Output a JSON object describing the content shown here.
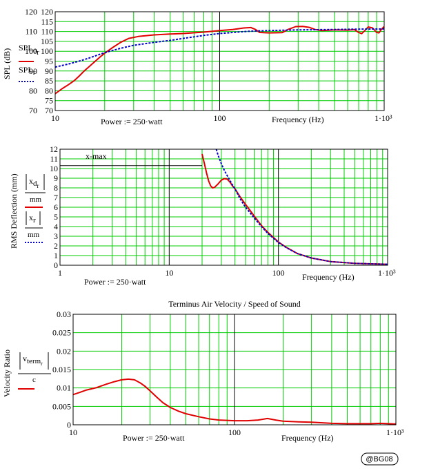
{
  "chart_data": [
    {
      "type": "line",
      "title": "",
      "xlabel": "Frequency (Hz)",
      "ylabel": "SPL (dB)",
      "xscale": "log",
      "xlim": [
        10,
        1000
      ],
      "ylim": [
        70,
        120
      ],
      "x_tick_labels": [
        "10",
        "100",
        "1·10³"
      ],
      "y_ticks_left": [
        "70",
        "75",
        "80",
        "85",
        "90",
        "95",
        "100",
        "105",
        "110",
        "115",
        "120"
      ],
      "y_ticks_outer": [
        "70",
        "80",
        "90",
        "100",
        "110",
        "120"
      ],
      "annotation": "Power := 250·watt",
      "grid": true,
      "legend_placement": "left",
      "series": [
        {
          "name": "SPL_o_r",
          "color": "#e00000",
          "style": "solid",
          "points": [
            [
              10,
              78.5
            ],
            [
              11,
              81
            ],
            [
              12,
              83
            ],
            [
              13,
              85
            ],
            [
              14,
              87.5
            ],
            [
              15,
              90
            ],
            [
              17,
              94
            ],
            [
              19,
              97.5
            ],
            [
              20,
              99
            ],
            [
              22,
              101.5
            ],
            [
              25,
              104.5
            ],
            [
              28,
              106.5
            ],
            [
              32,
              107.5
            ],
            [
              40,
              108.3
            ],
            [
              50,
              108.7
            ],
            [
              60,
              109
            ],
            [
              80,
              109.7
            ],
            [
              100,
              110.5
            ],
            [
              120,
              111
            ],
            [
              140,
              111.8
            ],
            [
              155,
              112
            ],
            [
              165,
              111
            ],
            [
              175,
              109.5
            ],
            [
              200,
              109.3
            ],
            [
              240,
              109.4
            ],
            [
              260,
              111
            ],
            [
              290,
              112.5
            ],
            [
              320,
              112.6
            ],
            [
              350,
              112.1
            ],
            [
              380,
              111
            ],
            [
              420,
              110.5
            ],
            [
              500,
              110.8
            ],
            [
              600,
              110.7
            ],
            [
              660,
              110.9
            ],
            [
              700,
              109.5
            ],
            [
              730,
              108.9
            ],
            [
              760,
              110.3
            ],
            [
              800,
              112.3
            ],
            [
              850,
              111.8
            ],
            [
              900,
              109.5
            ],
            [
              930,
              109.3
            ],
            [
              960,
              111
            ],
            [
              1000,
              112.5
            ]
          ]
        },
        {
          "name": "SPL_r",
          "color": "#0000cc",
          "style": "dotted",
          "points": [
            [
              10,
              92
            ],
            [
              12,
              93.5
            ],
            [
              14,
              95
            ],
            [
              16,
              96.5
            ],
            [
              18,
              98
            ],
            [
              20,
              99.3
            ],
            [
              25,
              101.5
            ],
            [
              30,
              103
            ],
            [
              40,
              104.5
            ],
            [
              50,
              105.5
            ],
            [
              60,
              106.5
            ],
            [
              80,
              108
            ],
            [
              100,
              109
            ],
            [
              150,
              110.1
            ],
            [
              200,
              110.5
            ],
            [
              300,
              110.8
            ],
            [
              500,
              111
            ],
            [
              700,
              111.2
            ],
            [
              1000,
              111.3
            ]
          ]
        }
      ]
    },
    {
      "type": "line",
      "title": "",
      "xlabel": "Frequency (Hz)",
      "ylabel": "RMS Deflection (mm)",
      "xscale": "log",
      "xlim": [
        1,
        1000
      ],
      "ylim": [
        0,
        12
      ],
      "x_tick_labels": [
        "1",
        "10",
        "100",
        "1·10³"
      ],
      "y_ticks": [
        "0",
        "1",
        "2",
        "3",
        "4",
        "5",
        "6",
        "7",
        "8",
        "9",
        "10",
        "11",
        "12"
      ],
      "annotation": "Power := 250·watt",
      "reference_line": {
        "label": "x-max",
        "y": 10.8
      },
      "grid": true,
      "legend_placement": "left",
      "series": [
        {
          "name": "x_d_r",
          "color": "#e00000",
          "style": "solid",
          "points": [
            [
              20,
              11.5
            ],
            [
              21,
              10.5
            ],
            [
              22,
              9.5
            ],
            [
              23,
              8.7
            ],
            [
              24,
              8.2
            ],
            [
              25,
              8
            ],
            [
              26,
              8.05
            ],
            [
              28,
              8.4
            ],
            [
              30,
              8.8
            ],
            [
              32,
              8.95
            ],
            [
              34,
              8.9
            ],
            [
              36,
              8.6
            ],
            [
              38,
              8.2
            ],
            [
              40,
              7.9
            ],
            [
              45,
              7
            ],
            [
              50,
              6.3
            ],
            [
              60,
              5.1
            ],
            [
              70,
              4.1
            ],
            [
              80,
              3.4
            ],
            [
              100,
              2.4
            ],
            [
              120,
              1.8
            ],
            [
              150,
              1.2
            ],
            [
              200,
              0.75
            ],
            [
              300,
              0.38
            ],
            [
              500,
              0.2
            ],
            [
              700,
              0.14
            ],
            [
              1000,
              0.1
            ]
          ]
        },
        {
          "name": "x_r",
          "color": "#0000cc",
          "style": "dotted",
          "points": [
            [
              27,
              12
            ],
            [
              28,
              11.4
            ],
            [
              30,
              10.5
            ],
            [
              32,
              9.8
            ],
            [
              35,
              9
            ],
            [
              38,
              8.3
            ],
            [
              40,
              7.9
            ],
            [
              45,
              6.8
            ],
            [
              50,
              6
            ],
            [
              60,
              4.9
            ],
            [
              70,
              4
            ],
            [
              80,
              3.3
            ],
            [
              100,
              2.35
            ],
            [
              120,
              1.78
            ],
            [
              150,
              1.2
            ],
            [
              200,
              0.75
            ],
            [
              300,
              0.38
            ],
            [
              500,
              0.2
            ],
            [
              700,
              0.14
            ],
            [
              1000,
              0.1
            ]
          ]
        }
      ]
    },
    {
      "type": "line",
      "title": "Terminus Air Velocity / Speed of Sound",
      "xlabel": "Frequency (Hz)",
      "ylabel": "Velocity Ratio",
      "xscale": "log",
      "xlim": [
        10,
        1000
      ],
      "ylim": [
        0,
        0.03
      ],
      "x_tick_labels": [
        "10",
        "100",
        "1·10³"
      ],
      "y_ticks": [
        "0",
        "0.005",
        "0.01",
        "0.015",
        "0.02",
        "0.025",
        "0.03"
      ],
      "annotation": "Power := 250·watt",
      "grid": true,
      "legend_placement": "left",
      "series": [
        {
          "name": "v_term_r",
          "color": "#e00000",
          "style": "solid",
          "points": [
            [
              10,
              0.0082
            ],
            [
              11,
              0.0088
            ],
            [
              12,
              0.0094
            ],
            [
              14,
              0.0101
            ],
            [
              16,
              0.011
            ],
            [
              18,
              0.0117
            ],
            [
              20,
              0.0122
            ],
            [
              22,
              0.0124
            ],
            [
              24,
              0.0122
            ],
            [
              26,
              0.0114
            ],
            [
              28,
              0.0104
            ],
            [
              30,
              0.0092
            ],
            [
              33,
              0.0075
            ],
            [
              36,
              0.006
            ],
            [
              40,
              0.0047
            ],
            [
              45,
              0.0037
            ],
            [
              50,
              0.003
            ],
            [
              60,
              0.0022
            ],
            [
              70,
              0.0016
            ],
            [
              80,
              0.0013
            ],
            [
              100,
              0.0011
            ],
            [
              120,
              0.0011
            ],
            [
              140,
              0.0013
            ],
            [
              160,
              0.0017
            ],
            [
              180,
              0.0013
            ],
            [
              200,
              0.001
            ],
            [
              250,
              0.0008
            ],
            [
              300,
              0.0007
            ],
            [
              400,
              0.0004
            ],
            [
              500,
              0.0003
            ],
            [
              700,
              0.0003
            ],
            [
              800,
              0.0004
            ],
            [
              900,
              0.0003
            ],
            [
              1000,
              0.0002
            ]
          ]
        }
      ]
    }
  ],
  "labels": {
    "spl_ylabel": "SPL (dB)",
    "defl_ylabel": "RMS Deflection (mm)",
    "vel_ylabel": "Velocity Ratio",
    "legend1_a_main": "SPL",
    "legend1_a_sub": "o",
    "legend1_a_subsub": "r",
    "legend1_b_main": "SPL",
    "legend1_b_sub": "r",
    "legend2_a_main": "x",
    "legend2_a_sub": "d",
    "legend2_a_subsub": "r",
    "legend2_b_main": "x",
    "legend2_b_sub": "r",
    "legend_den": "mm",
    "legend3_main": "v",
    "legend3_sub": "term",
    "legend3_subsub": "r",
    "legend3_den": "c",
    "badge": "@BG08"
  },
  "colors": {
    "grid": "#00cc00",
    "major_grid": "#000000",
    "red": "#e00000",
    "blue": "#0000cc"
  }
}
